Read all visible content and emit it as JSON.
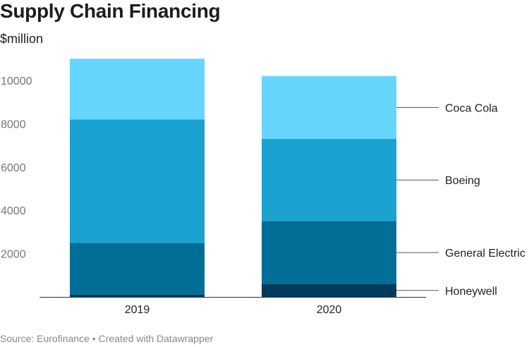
{
  "title": "Supply Chain Financing",
  "subtitle": "$million",
  "footer": {
    "source": "Source: Eurofinance",
    "separator": "•",
    "credit": "Created with Datawrapper"
  },
  "colors": {
    "Honeywell": "#003a5c",
    "General Electric": "#006e96",
    "Boeing": "#1aa3d0",
    "Coca Cola": "#66d5fd",
    "axis": "#333333",
    "grid": "#dddddd"
  },
  "chart_data": {
    "type": "bar",
    "stacked": true,
    "categories": [
      "2019",
      "2020"
    ],
    "series": [
      {
        "name": "Honeywell",
        "values": [
          100,
          600
        ]
      },
      {
        "name": "General Electric",
        "values": [
          2400,
          2900
        ]
      },
      {
        "name": "Boeing",
        "values": [
          5700,
          3800
        ]
      },
      {
        "name": "Coca Cola",
        "values": [
          2800,
          2900
        ]
      }
    ],
    "yticks": [
      2000,
      4000,
      6000,
      8000,
      10000
    ],
    "ylim": [
      0,
      11000
    ],
    "legend": "right (labels beside 2020 bar)",
    "grid": false
  }
}
